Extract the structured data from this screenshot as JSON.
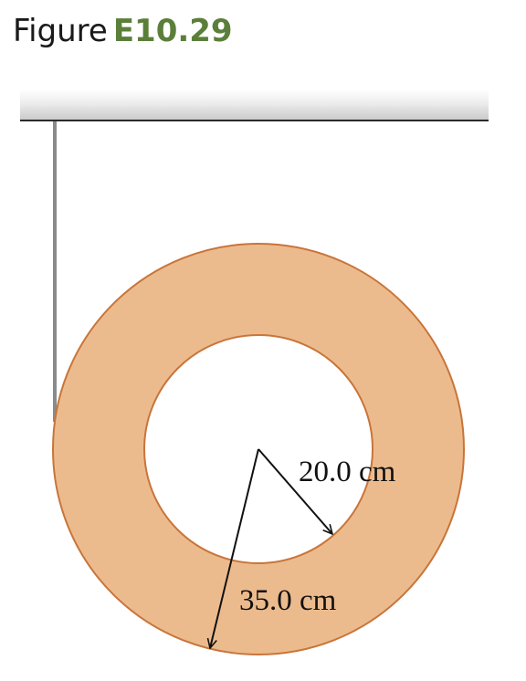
{
  "figure": {
    "prefix": "Figure",
    "number": "E10.29"
  },
  "labels": {
    "inner_radius": "20.0 cm",
    "outer_radius": "35.0 cm"
  },
  "colors": {
    "ring_fill": "#ecbb8d",
    "ring_stroke": "#c8753a",
    "figure_number": "#5b7f3a",
    "string": "#8a8a8a"
  }
}
